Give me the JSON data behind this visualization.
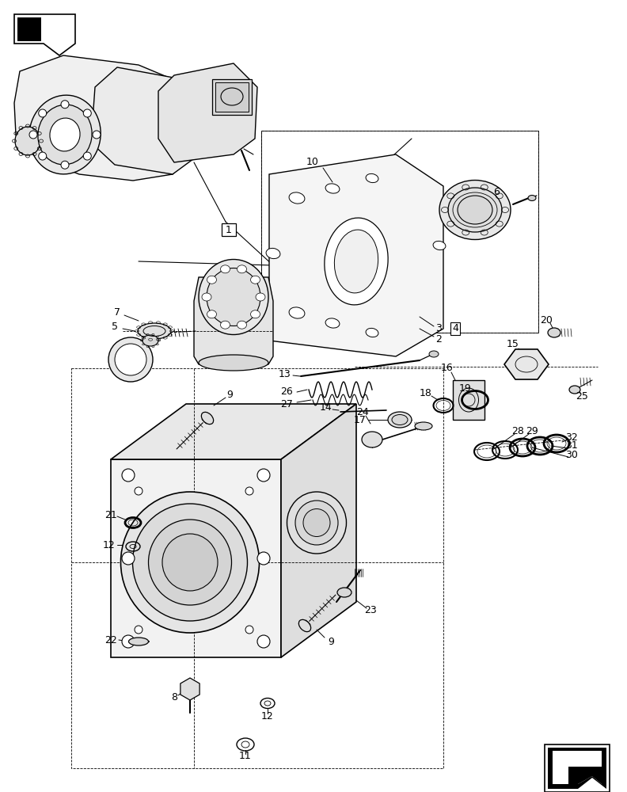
{
  "bg_color": "#ffffff",
  "line_color": "#000000",
  "figsize": [
    7.92,
    10.0
  ],
  "dpi": 100,
  "lw": 0.9
}
